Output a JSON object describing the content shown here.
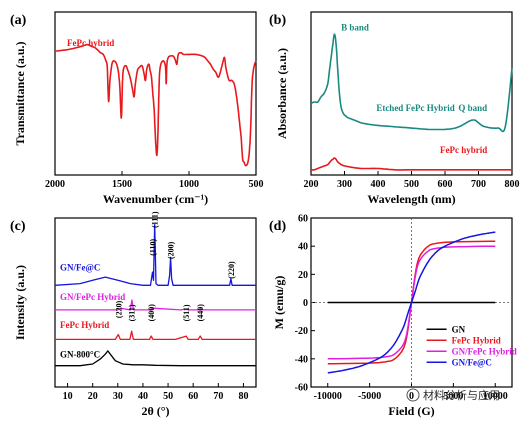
{
  "chart_data": [
    {
      "id": "a",
      "type": "line",
      "panel_label": "(a)",
      "xlabel": "Wavenumber (cm⁻¹)",
      "ylabel": "Transmittance (a.u.)",
      "xlim": [
        2000,
        500
      ],
      "xticks": [
        "2000",
        "1500",
        "1000",
        "500"
      ],
      "series": [
        {
          "name": "FePc hybrid",
          "color": "#e8181c",
          "x": [
            2000,
            1900,
            1800,
            1760,
            1730,
            1700,
            1660,
            1640,
            1620,
            1610,
            1600,
            1590,
            1575,
            1560,
            1540,
            1525,
            1515,
            1505,
            1495,
            1485,
            1470,
            1460,
            1440,
            1420,
            1410,
            1400,
            1385,
            1370,
            1350,
            1335,
            1325,
            1315,
            1300,
            1290,
            1280,
            1270,
            1260,
            1250,
            1240,
            1232,
            1225,
            1220,
            1210,
            1190,
            1175,
            1170,
            1165,
            1155,
            1140,
            1120,
            1110,
            1100,
            1090,
            1080,
            1060,
            1040,
            1000,
            950,
            900,
            880,
            860,
            840,
            820,
            800,
            780,
            760,
            745,
            735,
            725,
            715,
            700,
            680,
            660,
            640,
            620,
            610,
            600,
            590,
            580,
            570,
            560,
            550,
            540,
            530,
            520,
            510,
            500
          ],
          "y": [
            76,
            77,
            79,
            80,
            79,
            78,
            75,
            74,
            70,
            66,
            45,
            58,
            68,
            70,
            68,
            62,
            52,
            35,
            60,
            66,
            67,
            65,
            60,
            52,
            48,
            56,
            64,
            66,
            67,
            62,
            58,
            65,
            68,
            64,
            60,
            50,
            40,
            22,
            12,
            25,
            50,
            62,
            68,
            70,
            66,
            56,
            68,
            72,
            73,
            73,
            72,
            70,
            68,
            74,
            75,
            74,
            74,
            74,
            73,
            72,
            70,
            68,
            65,
            63,
            60,
            65,
            70,
            72,
            66,
            62,
            58,
            58,
            55,
            45,
            30,
            22,
            10,
            8,
            6,
            6,
            8,
            14,
            28,
            55,
            64,
            68,
            70
          ]
        }
      ]
    },
    {
      "id": "b",
      "type": "line",
      "panel_label": "(b)",
      "xlabel": "Wavelength (nm)",
      "ylabel": "Absorbance (a.u.)",
      "xlim": [
        200,
        800
      ],
      "xticks": [
        "200",
        "300",
        "400",
        "500",
        "600",
        "700",
        "800"
      ],
      "annotations": [
        "B band",
        "Q band"
      ],
      "series": [
        {
          "name": "Etched FePc Hybrid",
          "color": "#1a8a80",
          "x": [
            200,
            210,
            220,
            230,
            240,
            250,
            255,
            260,
            265,
            270,
            275,
            280,
            285,
            290,
            295,
            300,
            310,
            320,
            330,
            340,
            350,
            370,
            400,
            450,
            500,
            550,
            600,
            630,
            650,
            670,
            680,
            690,
            700,
            710,
            720,
            740,
            760,
            780,
            800
          ],
          "y": [
            55,
            56,
            56,
            60,
            63,
            70,
            80,
            90,
            100,
            108,
            100,
            80,
            62,
            52,
            48,
            46,
            44,
            43,
            42,
            41,
            40,
            39,
            38,
            37,
            36,
            35,
            35,
            36,
            38,
            41,
            42,
            42,
            40,
            38,
            37,
            36,
            36,
            37,
            82
          ]
        },
        {
          "name": "FePc hybrid",
          "color": "#e8181c",
          "x": [
            200,
            210,
            220,
            230,
            240,
            250,
            260,
            265,
            270,
            275,
            280,
            290,
            300,
            320,
            350,
            400,
            450,
            500,
            550,
            600,
            650,
            700,
            750,
            800
          ],
          "y": [
            4,
            4,
            5,
            6,
            7,
            8,
            11,
            12,
            13,
            12,
            10,
            8,
            7,
            6,
            5,
            5,
            4,
            4,
            4,
            4,
            4,
            4,
            4,
            4
          ]
        }
      ]
    },
    {
      "id": "c",
      "type": "line",
      "panel_label": "(c)",
      "xlabel": "2θ (°)",
      "ylabel": "Intensity (a.u.)",
      "xlim": [
        5,
        85
      ],
      "xticks": [
        "10",
        "20",
        "30",
        "40",
        "50",
        "60",
        "70",
        "80"
      ],
      "peak_labels": [
        {
          "text": "(111)",
          "x": 44.7,
          "level": 97
        },
        {
          "text": "(110)",
          "x": 43.8,
          "level": 80
        },
        {
          "text": "(200)",
          "x": 51.0,
          "level": 78
        },
        {
          "text": "(220)",
          "x": 75.0,
          "level": 66
        },
        {
          "text": "(220)",
          "x": 30.2,
          "level": 42
        },
        {
          "text": "(311)",
          "x": 35.5,
          "level": 40
        },
        {
          "text": "(400)",
          "x": 43.3,
          "level": 40
        },
        {
          "text": "(511)",
          "x": 57.2,
          "level": 40
        },
        {
          "text": "(440)",
          "x": 62.8,
          "level": 40
        }
      ],
      "series": [
        {
          "name": "GN/Fe@C",
          "color": "#1515e0",
          "x": [
            5,
            15,
            20,
            25,
            30,
            35,
            40,
            43,
            43.8,
            44.2,
            44.7,
            45.2,
            46,
            50,
            50.6,
            51,
            51.4,
            52,
            60,
            74.5,
            75,
            75.5,
            85
          ],
          "y": [
            62,
            63,
            65,
            67,
            65,
            63,
            62,
            62,
            70,
            65,
            99,
            63,
            62,
            62,
            68,
            79,
            66,
            62,
            62,
            62,
            66,
            62,
            62
          ]
        },
        {
          "name": "GN/FePc Hybrid",
          "color": "#e020e0",
          "x": [
            5,
            20,
            28,
            30,
            31,
            35,
            35.6,
            36.2,
            37,
            43,
            44,
            55,
            57,
            58,
            62,
            63,
            64,
            75,
            85
          ],
          "y": [
            47,
            47,
            47,
            47,
            48,
            47,
            53,
            47,
            47,
            47,
            48,
            47,
            47.5,
            47,
            47,
            47.5,
            47,
            47,
            47
          ]
        },
        {
          "name": "FePc Hybrid",
          "color": "#e8181c",
          "x": [
            5,
            20,
            29,
            30.2,
            31,
            34.8,
            35.5,
            36.2,
            42.6,
            43.3,
            44,
            53,
            57.2,
            58,
            62,
            62.8,
            63.6,
            70,
            75,
            85
          ],
          "y": [
            29,
            29,
            29,
            32,
            29,
            29,
            34,
            29,
            29,
            31,
            29,
            29,
            31,
            29,
            29,
            31,
            29,
            29,
            29,
            29
          ]
        },
        {
          "name": "GN-800°C",
          "color": "#000000",
          "x": [
            5,
            15,
            20,
            23,
            25,
            26,
            27,
            29,
            32,
            36,
            40,
            45,
            55,
            85
          ],
          "y": [
            13,
            13,
            14,
            17,
            20,
            22,
            20,
            16,
            14,
            13.5,
            13.5,
            13.2,
            13,
            13
          ]
        }
      ]
    },
    {
      "id": "d",
      "type": "line",
      "panel_label": "(d)",
      "xlabel": "Field (G)",
      "ylabel": "M (emu/g)",
      "xlim": [
        -12000,
        12000
      ],
      "ylim": [
        -60,
        60
      ],
      "xticks": [
        "-10000",
        "-5000",
        "0",
        "5000",
        "10000"
      ],
      "yticks": [
        "-60",
        "-40",
        "-20",
        "0",
        "20",
        "40",
        "60"
      ],
      "series": [
        {
          "name": "GN",
          "color": "#000000",
          "x": [
            -10000,
            0,
            10000
          ],
          "y": [
            0,
            0,
            0
          ]
        },
        {
          "name": "FePc Hybrid",
          "color": "#e8181c",
          "x": [
            -10000,
            -5000,
            -3000,
            -2000,
            -1000,
            -500,
            0,
            500,
            1000,
            2000,
            3000,
            5000,
            10000
          ],
          "y": [
            -43.5,
            -43,
            -42,
            -40,
            -33,
            -22,
            0,
            22,
            33,
            40,
            42,
            43,
            43.5
          ]
        },
        {
          "name": "GN/FePc Hybrid",
          "color": "#e020e0",
          "x": [
            -10000,
            -5000,
            -3000,
            -2000,
            -1000,
            -500,
            0,
            500,
            1000,
            2000,
            3000,
            5000,
            10000
          ],
          "y": [
            -40,
            -39.5,
            -38.5,
            -36.5,
            -30,
            -20,
            0,
            20,
            30,
            36.5,
            38.5,
            39.5,
            40
          ]
        },
        {
          "name": "GN/Fe@C",
          "color": "#1515e0",
          "x": [
            -10000,
            -8000,
            -6000,
            -4000,
            -3000,
            -2000,
            -1000,
            -500,
            0,
            500,
            1000,
            2000,
            3000,
            4000,
            6000,
            8000,
            10000
          ],
          "y": [
            -50,
            -48,
            -45,
            -40,
            -36,
            -29,
            -18,
            -9,
            0,
            9,
            18,
            29,
            36,
            40,
            45,
            48,
            50
          ]
        }
      ]
    }
  ],
  "watermark": "材料分析与应用"
}
